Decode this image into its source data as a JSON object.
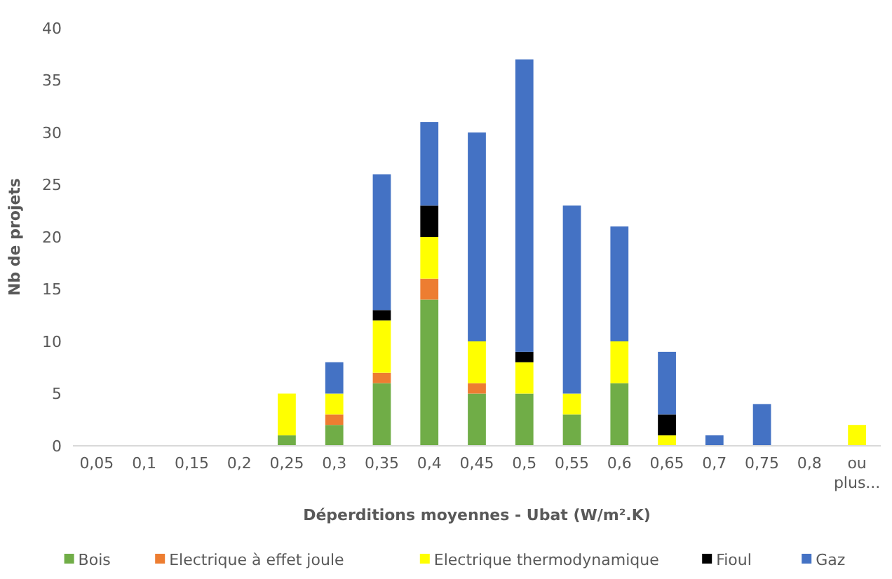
{
  "chart_data": {
    "type": "bar",
    "stacked": true,
    "xlabel": "Déperditions moyennes - Ubat (W/m².K)",
    "ylabel": "Nb de projets",
    "categories": [
      "0,05",
      "0,1",
      "0,15",
      "0,2",
      "0,25",
      "0,3",
      "0,35",
      "0,4",
      "0,45",
      "0,5",
      "0,55",
      "0,6",
      "0,65",
      "0,7",
      "0,75",
      "0,8",
      "ou plus..."
    ],
    "series": [
      {
        "name": "Bois",
        "color": "#70ad47",
        "values": [
          0,
          0,
          0,
          0,
          1,
          2,
          6,
          14,
          5,
          5,
          3,
          6,
          0,
          0,
          0,
          0,
          0
        ]
      },
      {
        "name": "Electrique à effet joule",
        "color": "#ed7d31",
        "values": [
          0,
          0,
          0,
          0,
          0,
          1,
          1,
          2,
          1,
          0,
          0,
          0,
          0,
          0,
          0,
          0,
          0
        ]
      },
      {
        "name": "Electrique thermodynamique",
        "color": "#ffff00",
        "values": [
          0,
          0,
          0,
          0,
          4,
          2,
          5,
          4,
          4,
          3,
          2,
          4,
          1,
          0,
          0,
          0,
          2
        ]
      },
      {
        "name": "Fioul",
        "color": "#000000",
        "values": [
          0,
          0,
          0,
          0,
          0,
          0,
          1,
          3,
          0,
          1,
          0,
          0,
          2,
          0,
          0,
          0,
          0
        ]
      },
      {
        "name": "Gaz",
        "color": "#4472c4",
        "values": [
          0,
          0,
          0,
          0,
          0,
          3,
          13,
          8,
          20,
          28,
          18,
          11,
          6,
          1,
          4,
          0,
          0
        ]
      }
    ],
    "ylim": [
      0,
      40
    ],
    "yticks": [
      0,
      5,
      10,
      15,
      20,
      25,
      30,
      35,
      40
    ],
    "grid": false,
    "legend": "bottom"
  }
}
